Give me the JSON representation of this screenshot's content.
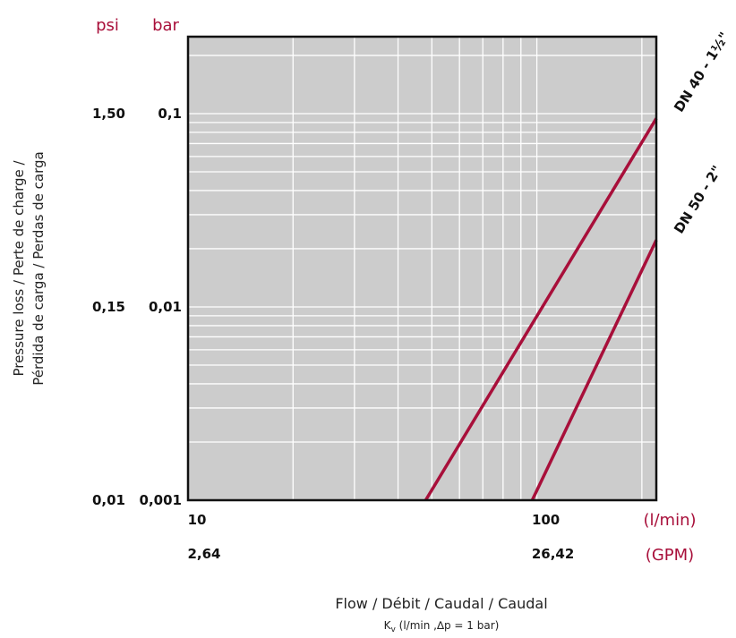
{
  "chart_data": {
    "type": "line",
    "log_x": true,
    "log_y": true,
    "x_range": [
      10,
      220
    ],
    "y_range": [
      0.001,
      0.25
    ],
    "x_ticks": [
      {
        "value": 10,
        "label": "10",
        "label2": "2,64"
      },
      {
        "value": 100,
        "label": "100",
        "label2": "26,42"
      }
    ],
    "x_unit_primary": "(l/min)",
    "x_unit_secondary": "(GPM)",
    "y_ticks": [
      {
        "value": 0.1,
        "bar": "0,1",
        "psi": "1,50"
      },
      {
        "value": 0.01,
        "bar": "0,01",
        "psi": "0,15"
      },
      {
        "value": 0.001,
        "bar": "0,001",
        "psi": "0,01"
      }
    ],
    "y_unit_psi": "psi",
    "y_unit_bar": "bar",
    "ylabel_line1": "Pressure loss / Perte de charge /",
    "ylabel_line2": "Pérdida de carga / Perdas de carga",
    "xlabel": "Flow / Débit / Caudal / Caudal",
    "xsub_k": "K",
    "xsub_v": "v",
    "xsub_rest": " (l/min ,∆p = 1 bar)",
    "grid": true,
    "line_color": "#a80f3a",
    "series": [
      {
        "name": "DN 40 - 1½\"",
        "x": [
          48,
          220
        ],
        "y": [
          0.001,
          0.0945
        ]
      },
      {
        "name": "DN 50 - 2\"",
        "x": [
          97,
          220
        ],
        "y": [
          0.001,
          0.0222
        ]
      }
    ]
  }
}
